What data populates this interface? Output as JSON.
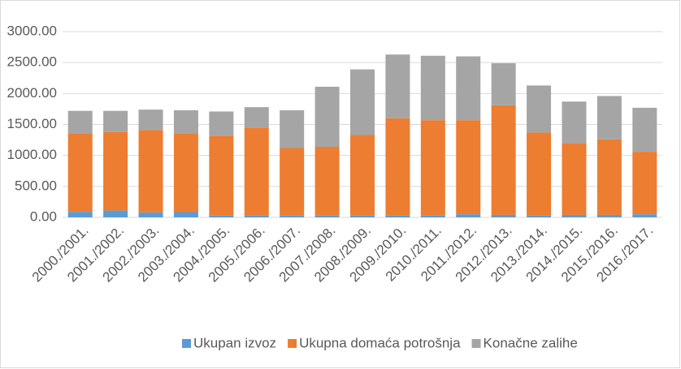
{
  "chart_data": {
    "type": "stacked_bar",
    "categories": [
      "2000./2001.",
      "2001./2002.",
      "2002./2003.",
      "2003./2004.",
      "2004./2005.",
      "2005./2006.",
      "2006./2007.",
      "2007./2008.",
      "2008./2009.",
      "2009./2010.",
      "2010./2011.",
      "2011./2012.",
      "2012./2013.",
      "2013./2014.",
      "2014./2015.",
      "2015./2016.",
      "2016./2017."
    ],
    "series": [
      {
        "name": "Ukupan izvoz",
        "color": "#5b9bd5",
        "values": [
          90,
          110,
          80,
          85,
          30,
          30,
          30,
          30,
          30,
          30,
          30,
          50,
          40,
          30,
          40,
          40,
          50
        ]
      },
      {
        "name": "Ukupna domaća potrošnja",
        "color": "#ed7d31",
        "values": [
          1270,
          1270,
          1330,
          1275,
          1290,
          1420,
          1090,
          1110,
          1300,
          1570,
          1540,
          1520,
          1770,
          1340,
          1160,
          1220,
          1010
        ]
      },
      {
        "name": "Konačne zalihe",
        "color": "#a5a5a5",
        "values": [
          360,
          340,
          330,
          370,
          390,
          330,
          610,
          970,
          1060,
          1030,
          1040,
          1030,
          680,
          760,
          670,
          700,
          710
        ]
      }
    ],
    "ylim": [
      0,
      3000
    ],
    "yticks": [
      {
        "value": 0,
        "label": "0.00"
      },
      {
        "value": 500,
        "label": "500.00"
      },
      {
        "value": 1000,
        "label": "1000.00"
      },
      {
        "value": 1500,
        "label": "1500.00"
      },
      {
        "value": 2000,
        "label": "2000.00"
      },
      {
        "value": 2500,
        "label": "2500.00"
      },
      {
        "value": 3000,
        "label": "3000.00"
      }
    ],
    "grid": true,
    "legend": "bottom"
  }
}
